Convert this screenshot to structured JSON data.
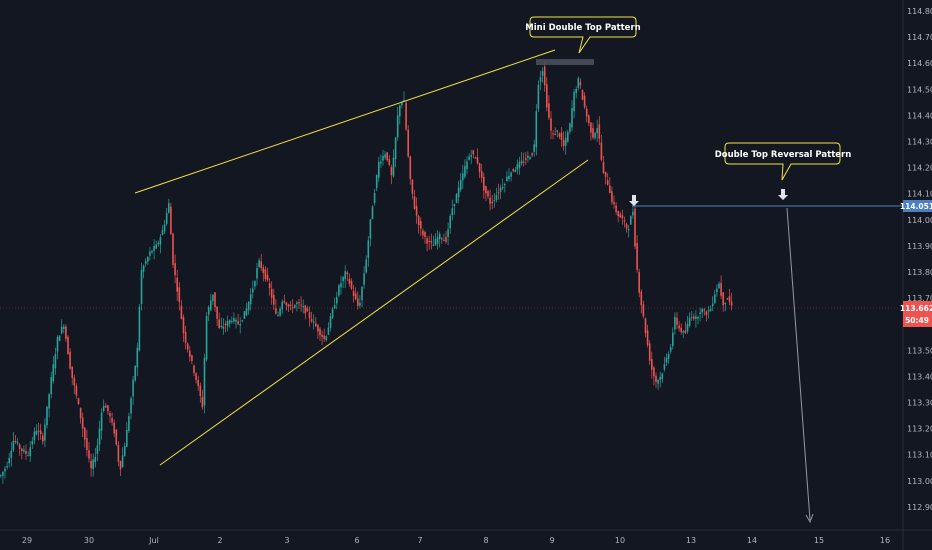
{
  "chart_data": {
    "type": "candlestick",
    "title": "",
    "ylim": [
      112.85,
      114.85
    ],
    "y_ticks": [
      "114.800",
      "114.700",
      "114.600",
      "114.500",
      "114.400",
      "114.300",
      "114.200",
      "114.100",
      "114.000",
      "113.900",
      "113.800",
      "113.700",
      "113.600",
      "113.500",
      "113.400",
      "113.300",
      "113.200",
      "113.100",
      "113.000",
      "112.900"
    ],
    "x_ticks": [
      "29",
      "30",
      "Jul",
      "2",
      "3",
      "6",
      "7",
      "8",
      "9",
      "10",
      "13",
      "14",
      "15",
      "16"
    ],
    "up_color": "#26a69a",
    "down_color": "#ef5350",
    "price_tags": {
      "level": "114.051",
      "current": "113.662",
      "countdown": "50:49"
    },
    "annotations": {
      "mini_double_top": "Mini Double Top Pattern",
      "double_top_reversal": "Double Top Reversal Pattern"
    },
    "anchors": [
      [
        0,
        113.02
      ],
      [
        6,
        113.06
      ],
      [
        13,
        113.16
      ],
      [
        20,
        113.12
      ],
      [
        27,
        113.1
      ],
      [
        35,
        113.2
      ],
      [
        42,
        113.16
      ],
      [
        50,
        113.38
      ],
      [
        57,
        113.55
      ],
      [
        63,
        113.6
      ],
      [
        70,
        113.42
      ],
      [
        77,
        113.3
      ],
      [
        84,
        113.16
      ],
      [
        90,
        113.04
      ],
      [
        96,
        113.12
      ],
      [
        102,
        113.3
      ],
      [
        108,
        113.26
      ],
      [
        114,
        113.18
      ],
      [
        119,
        113.04
      ],
      [
        125,
        113.16
      ],
      [
        131,
        113.34
      ],
      [
        137,
        113.52
      ],
      [
        140,
        113.8
      ],
      [
        145,
        113.84
      ],
      [
        150,
        113.88
      ],
      [
        156,
        113.9
      ],
      [
        162,
        113.96
      ],
      [
        168,
        114.06
      ],
      [
        172,
        113.84
      ],
      [
        177,
        113.72
      ],
      [
        183,
        113.56
      ],
      [
        189,
        113.48
      ],
      [
        196,
        113.38
      ],
      [
        202,
        113.28
      ],
      [
        205,
        113.62
      ],
      [
        212,
        113.72
      ],
      [
        218,
        113.58
      ],
      [
        225,
        113.6
      ],
      [
        231,
        113.62
      ],
      [
        238,
        113.6
      ],
      [
        245,
        113.65
      ],
      [
        252,
        113.74
      ],
      [
        258,
        113.84
      ],
      [
        265,
        113.78
      ],
      [
        270,
        113.72
      ],
      [
        276,
        113.62
      ],
      [
        282,
        113.7
      ],
      [
        289,
        113.66
      ],
      [
        296,
        113.68
      ],
      [
        303,
        113.66
      ],
      [
        310,
        113.62
      ],
      [
        317,
        113.58
      ],
      [
        324,
        113.54
      ],
      [
        331,
        113.64
      ],
      [
        338,
        113.74
      ],
      [
        345,
        113.8
      ],
      [
        352,
        113.72
      ],
      [
        358,
        113.66
      ],
      [
        365,
        113.84
      ],
      [
        371,
        114.04
      ],
      [
        378,
        114.22
      ],
      [
        385,
        114.26
      ],
      [
        391,
        114.16
      ],
      [
        398,
        114.44
      ],
      [
        403,
        114.46
      ],
      [
        409,
        114.16
      ],
      [
        414,
        114.04
      ],
      [
        420,
        113.96
      ],
      [
        426,
        113.92
      ],
      [
        432,
        113.9
      ],
      [
        438,
        113.94
      ],
      [
        445,
        113.92
      ],
      [
        451,
        114.04
      ],
      [
        458,
        114.12
      ],
      [
        464,
        114.2
      ],
      [
        470,
        114.26
      ],
      [
        477,
        114.22
      ],
      [
        483,
        114.12
      ],
      [
        490,
        114.06
      ],
      [
        496,
        114.1
      ],
      [
        503,
        114.14
      ],
      [
        509,
        114.18
      ],
      [
        515,
        114.2
      ],
      [
        521,
        114.22
      ],
      [
        527,
        114.24
      ],
      [
        533,
        114.26
      ],
      [
        537,
        114.52
      ],
      [
        542,
        114.58
      ],
      [
        546,
        114.44
      ],
      [
        551,
        114.32
      ],
      [
        557,
        114.34
      ],
      [
        563,
        114.28
      ],
      [
        569,
        114.36
      ],
      [
        573,
        114.48
      ],
      [
        578,
        114.54
      ],
      [
        582,
        114.46
      ],
      [
        587,
        114.38
      ],
      [
        592,
        114.32
      ],
      [
        597,
        114.36
      ],
      [
        602,
        114.18
      ],
      [
        607,
        114.14
      ],
      [
        612,
        114.06
      ],
      [
        617,
        114.02
      ],
      [
        622,
        114.0
      ],
      [
        627,
        113.96
      ],
      [
        632,
        114.04
      ],
      [
        635,
        113.86
      ],
      [
        638,
        113.74
      ],
      [
        642,
        113.64
      ],
      [
        646,
        113.54
      ],
      [
        650,
        113.44
      ],
      [
        655,
        113.38
      ],
      [
        660,
        113.4
      ],
      [
        665,
        113.46
      ],
      [
        670,
        113.52
      ],
      [
        674,
        113.62
      ],
      [
        679,
        113.58
      ],
      [
        684,
        113.56
      ],
      [
        690,
        113.64
      ],
      [
        695,
        113.62
      ],
      [
        700,
        113.66
      ],
      [
        705,
        113.64
      ],
      [
        710,
        113.66
      ],
      [
        714,
        113.72
      ],
      [
        718,
        113.76
      ],
      [
        722,
        113.68
      ],
      [
        727,
        113.7
      ],
      [
        732,
        113.66
      ]
    ]
  }
}
